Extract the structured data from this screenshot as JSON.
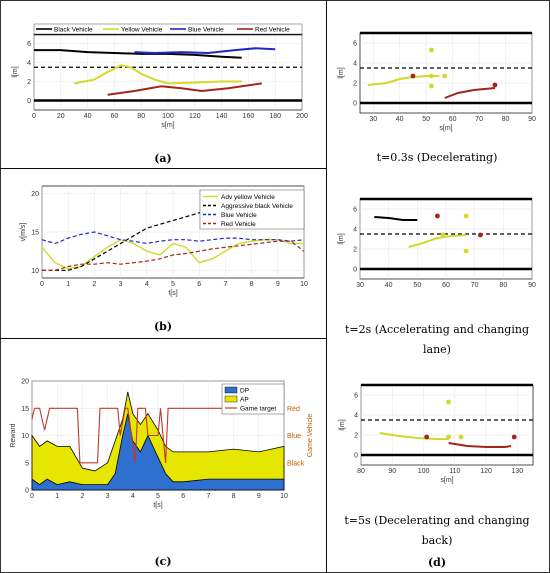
{
  "colors": {
    "black_vehicle": "#000000",
    "yellow_vehicle": "#d4d82a",
    "blue_vehicle": "#1f27c9",
    "red_vehicle": "#a2261c",
    "dp_fill": "#2e6fd0",
    "ap_fill": "#e6e600",
    "game_target": "#c0392b",
    "reward_axis": "#1565c0",
    "game_axis": "#c05a00"
  },
  "captions": {
    "a": "(a)",
    "b": "(b)",
    "c": "(c)",
    "d": "(d)",
    "t03": "t=0.3s (Decelerating)",
    "t2_line1": "t=2s (Accelerating and changing",
    "t2_line2": "lane)",
    "t5_line1": "t=5s (Decelerating and changing",
    "t5_line2": "back)"
  },
  "chart_data": [
    {
      "id": "a",
      "type": "line",
      "xlabel": "s[m]",
      "ylabel": "l[m]",
      "xlim": [
        0,
        200
      ],
      "ylim": [
        -1,
        7
      ],
      "xticks": [
        "0",
        "20",
        "40",
        "60",
        "80",
        "100",
        "120",
        "140",
        "160",
        "180",
        "200"
      ],
      "yticks": [
        "0",
        "2",
        "4",
        "6"
      ],
      "grid": true,
      "legend_position": "top",
      "road": {
        "solid": [
          0,
          7
        ],
        "dashed": [
          3.5
        ]
      },
      "series": [
        {
          "name": "Black Vehicle",
          "color": "black_vehicle",
          "x": [
            0,
            20,
            40,
            60,
            80,
            100,
            120,
            140,
            155
          ],
          "y": [
            5.3,
            5.3,
            5.1,
            5.0,
            4.9,
            4.9,
            4.8,
            4.6,
            4.5
          ]
        },
        {
          "name": "Yellow Vehicle",
          "color": "yellow_vehicle",
          "x": [
            30,
            45,
            55,
            65,
            72,
            80,
            90,
            100,
            120,
            140,
            155
          ],
          "y": [
            1.8,
            2.2,
            3.0,
            3.7,
            3.5,
            2.8,
            2.2,
            1.8,
            1.9,
            2.0,
            2.0
          ]
        },
        {
          "name": "Blue Vehicle",
          "color": "blue_vehicle",
          "x": [
            75,
            90,
            110,
            130,
            150,
            165,
            180
          ],
          "y": [
            5.1,
            5.0,
            5.1,
            5.0,
            5.3,
            5.5,
            5.4
          ]
        },
        {
          "name": "Red Vehicle",
          "color": "red_vehicle",
          "x": [
            55,
            75,
            95,
            110,
            125,
            145,
            170
          ],
          "y": [
            0.6,
            1.0,
            1.5,
            1.3,
            1.0,
            1.3,
            1.8
          ]
        }
      ]
    },
    {
      "id": "b",
      "type": "line",
      "xlabel": "t[s]",
      "ylabel": "v[m/s]",
      "xlim": [
        0,
        10
      ],
      "ylim": [
        9,
        21
      ],
      "xticks": [
        "0",
        "1",
        "2",
        "3",
        "4",
        "5",
        "6",
        "7",
        "8",
        "9",
        "10"
      ],
      "yticks": [
        "10",
        "15",
        "20"
      ],
      "grid": true,
      "legend_position": "top-right",
      "series": [
        {
          "name": "Adv yellow Vehicle",
          "color": "yellow_vehicle",
          "x": [
            0,
            0.5,
            1,
            1.5,
            2,
            2.5,
            3,
            3.5,
            4,
            4.5,
            5,
            5.5,
            6,
            6.5,
            7,
            7.5,
            8,
            8.5,
            9,
            9.5,
            10
          ],
          "y": [
            13,
            11,
            10.2,
            10.5,
            11.8,
            13,
            14,
            13.5,
            12.5,
            12,
            13.5,
            13,
            11,
            11.5,
            12.5,
            13.5,
            13.8,
            14,
            14,
            13.5,
            13.5
          ]
        },
        {
          "name": "Aggressive black Vehicle",
          "color": "black_vehicle",
          "dashed": true,
          "x": [
            0,
            0.5,
            1,
            1.5,
            2,
            2.5,
            3,
            3.5,
            4,
            4.5,
            5,
            5.5,
            6,
            6.5,
            7,
            7.5,
            8,
            8.5,
            9,
            9.5,
            10
          ],
          "y": [
            10,
            10,
            10,
            10.5,
            11.5,
            12.5,
            13.5,
            14.5,
            15.5,
            16,
            16.5,
            17,
            17.5,
            18.2,
            18.8,
            19.2,
            19.5,
            19.8,
            19.9,
            20,
            20
          ]
        },
        {
          "name": "Blue Vehicle",
          "color": "blue_vehicle",
          "dashed": true,
          "x": [
            0,
            0.5,
            1,
            1.5,
            2,
            2.5,
            3,
            3.5,
            4,
            4.5,
            5,
            5.5,
            6,
            6.5,
            7,
            7.5,
            8,
            8.5,
            9,
            9.5,
            10
          ],
          "y": [
            14,
            13.5,
            14.2,
            14.7,
            15,
            14.5,
            14,
            13.8,
            13.5,
            13.8,
            14,
            14,
            13.8,
            14,
            14.2,
            14.2,
            14,
            14,
            14,
            13.8,
            14
          ]
        },
        {
          "name": "Red Vehicle",
          "color": "red_vehicle",
          "dashed": true,
          "x": [
            0,
            0.5,
            1,
            1.5,
            2,
            2.5,
            3,
            3.5,
            4,
            4.5,
            5,
            5.5,
            6,
            6.5,
            7,
            7.5,
            8,
            8.5,
            9,
            9.5,
            10
          ],
          "y": [
            10,
            10,
            10.5,
            10.8,
            10.8,
            11,
            10.8,
            11,
            11.2,
            11.5,
            12,
            12.2,
            12.5,
            12.8,
            13,
            13.2,
            13.4,
            13.6,
            13.8,
            13.8,
            12.5
          ]
        }
      ]
    },
    {
      "id": "c",
      "type": "area",
      "xlabel": "t[s]",
      "ylabel": "Reward",
      "ylabel_right": "Game Vehicle",
      "xlim": [
        0,
        10
      ],
      "ylim": [
        0,
        20
      ],
      "xticks": [
        "0",
        "1",
        "2",
        "3",
        "4",
        "5",
        "6",
        "7",
        "8",
        "9",
        "10"
      ],
      "yticks": [
        "0",
        "5",
        "10",
        "15",
        "20"
      ],
      "right_ticks": [
        "Red",
        "Blue",
        "Black"
      ],
      "grid": true,
      "legend_position": "top-right",
      "series": [
        {
          "name": "DP",
          "color": "dp_fill",
          "x": [
            0,
            0.3,
            0.6,
            1,
            1.5,
            2,
            2.5,
            3,
            3.3,
            3.6,
            3.8,
            4,
            4.3,
            4.6,
            5,
            5.3,
            5.6,
            6,
            7,
            8,
            9,
            10
          ],
          "y": [
            2,
            1,
            2,
            1,
            1.5,
            1,
            1,
            1,
            3,
            10,
            14,
            9,
            7,
            10,
            6,
            3,
            1.5,
            1.5,
            2,
            2,
            2,
            2
          ]
        },
        {
          "name": "AP",
          "color": "ap_fill",
          "x": [
            0,
            0.3,
            0.6,
            1,
            1.5,
            2,
            2.5,
            3,
            3.3,
            3.6,
            3.8,
            4,
            4.3,
            4.6,
            5,
            5.3,
            5.6,
            6,
            7,
            8,
            9,
            10
          ],
          "y": [
            10,
            8,
            9,
            8,
            8,
            4,
            3.5,
            5,
            9,
            13,
            18,
            14,
            12,
            14,
            11,
            8,
            7,
            7,
            7,
            7.5,
            7,
            8
          ]
        },
        {
          "name": "Game target",
          "color": "game_target",
          "x": [
            0,
            0.1,
            0.3,
            0.5,
            0.7,
            0.9,
            1.0,
            1.8,
            1.9,
            2.6,
            2.7,
            3.4,
            3.5,
            3.7,
            3.8,
            4.1,
            4.2,
            4.5,
            4.6,
            5.0,
            5.1,
            5.3,
            5.4,
            10
          ],
          "y": [
            13,
            15,
            15,
            11,
            15,
            15,
            15,
            15,
            5,
            5,
            15,
            15,
            10,
            15,
            15,
            5,
            15,
            15,
            10,
            10,
            15,
            5,
            15,
            15
          ]
        }
      ]
    },
    {
      "id": "d1",
      "type": "scatter",
      "xlabel": "s[m]",
      "ylabel": "l[m]",
      "xlim": [
        25,
        90
      ],
      "ylim": [
        -1,
        7
      ],
      "xticks": [
        "30",
        "40",
        "50",
        "60",
        "70",
        "80",
        "90"
      ],
      "yticks": [
        "0",
        "2",
        "4",
        "6"
      ],
      "grid": true,
      "road": {
        "solid": [
          0,
          7
        ],
        "dashed": [
          3.5
        ]
      },
      "lines": [
        {
          "color": "yellow_vehicle",
          "x": [
            28,
            35,
            40,
            45,
            50,
            55
          ],
          "y": [
            1.8,
            2.0,
            2.4,
            2.6,
            2.7,
            2.7
          ]
        },
        {
          "color": "red_vehicle",
          "x": [
            57,
            62,
            68,
            72,
            76
          ],
          "y": [
            0.5,
            1.0,
            1.3,
            1.4,
            1.5
          ]
        }
      ],
      "points": [
        {
          "color": "red_vehicle",
          "x": 45,
          "y": 2.7
        },
        {
          "color": "yellow_vehicle",
          "x": 52,
          "y": 5.3
        },
        {
          "color": "yellow_vehicle",
          "x": 52,
          "y": 2.7
        },
        {
          "color": "yellow_vehicle",
          "x": 57,
          "y": 2.7
        },
        {
          "color": "yellow_vehicle",
          "x": 52,
          "y": 1.7
        },
        {
          "color": "red_vehicle",
          "x": 76,
          "y": 1.8
        }
      ]
    },
    {
      "id": "d2",
      "type": "scatter",
      "xlabel": "",
      "ylabel": "l[m]",
      "xlim": [
        30,
        90
      ],
      "ylim": [
        -1,
        7
      ],
      "xticks": [
        "30",
        "40",
        "50",
        "60",
        "70",
        "80",
        "90"
      ],
      "yticks": [
        "0",
        "2",
        "4",
        "6"
      ],
      "grid": true,
      "road": {
        "solid": [
          0,
          7
        ],
        "dashed": [
          3.5
        ]
      },
      "lines": [
        {
          "color": "black_vehicle",
          "x": [
            35,
            40,
            45,
            50
          ],
          "y": [
            5.2,
            5.1,
            4.9,
            4.9
          ]
        },
        {
          "color": "yellow_vehicle",
          "x": [
            47,
            52,
            57,
            62,
            67
          ],
          "y": [
            2.2,
            2.6,
            3.1,
            3.3,
            3.4
          ]
        }
      ],
      "points": [
        {
          "color": "red_vehicle",
          "x": 57,
          "y": 5.3
        },
        {
          "color": "yellow_vehicle",
          "x": 67,
          "y": 5.3
        },
        {
          "color": "yellow_vehicle",
          "x": 59,
          "y": 3.4
        },
        {
          "color": "red_vehicle",
          "x": 72,
          "y": 3.4
        },
        {
          "color": "yellow_vehicle",
          "x": 67,
          "y": 1.8
        }
      ]
    },
    {
      "id": "d3",
      "type": "scatter",
      "xlabel": "s[m]",
      "ylabel": "l[m]",
      "xlim": [
        80,
        135
      ],
      "ylim": [
        -1,
        7
      ],
      "xticks": [
        "80",
        "90",
        "100",
        "110",
        "120",
        "130"
      ],
      "yticks": [
        "0",
        "2",
        "4",
        "6"
      ],
      "grid": true,
      "road": {
        "solid": [
          0,
          7
        ],
        "dashed": [
          3.5
        ]
      },
      "lines": [
        {
          "color": "yellow_vehicle",
          "x": [
            86,
            92,
            98,
            104,
            108
          ],
          "y": [
            2.2,
            1.9,
            1.7,
            1.6,
            1.6
          ]
        },
        {
          "color": "red_vehicle",
          "x": [
            108,
            114,
            120,
            126,
            128
          ],
          "y": [
            1.2,
            0.9,
            0.8,
            0.8,
            0.9
          ]
        }
      ],
      "points": [
        {
          "color": "red_vehicle",
          "x": 101,
          "y": 1.8
        },
        {
          "color": "yellow_vehicle",
          "x": 108,
          "y": 5.3
        },
        {
          "color": "yellow_vehicle",
          "x": 108,
          "y": 1.8
        },
        {
          "color": "yellow_vehicle",
          "x": 112,
          "y": 1.8
        },
        {
          "color": "red_vehicle",
          "x": 129,
          "y": 1.8
        }
      ]
    }
  ]
}
